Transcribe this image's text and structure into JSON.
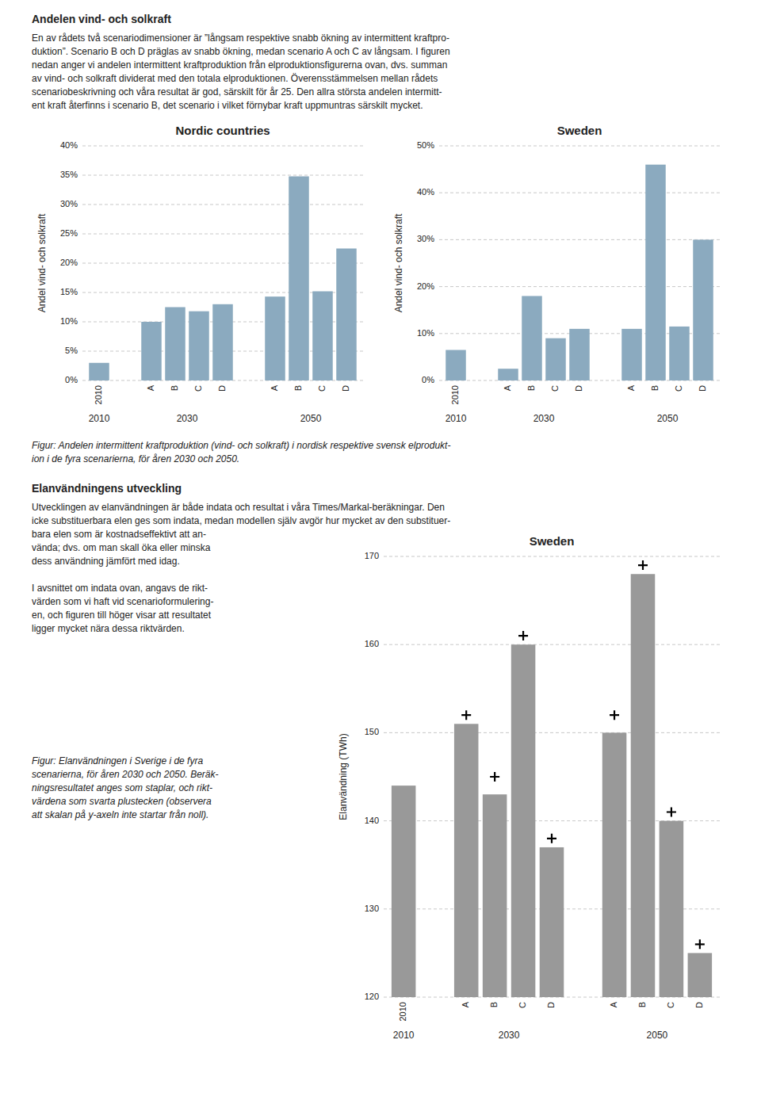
{
  "page_title": "Andelen vind- och solkraft",
  "page_text_lines": [
    "En av rådets två scenariodimensioner är ”långsam respektive snabb ökning av intermittent kraftpro-",
    "duktion”. Scenario B och D präglas av snabb ökning, medan scenario A och C av långsam. I figuren",
    "nedan anger vi andelen intermittent kraftproduktion från elproduktionsfigurerna ovan, dvs. summan",
    "av vind- och solkraft dividerat med den totala elproduktionen. Överensstämmelsen mellan rådets",
    "scenariobeskrivning och våra resultat är god, särskilt för år 25. Den allra största andelen intermitt-",
    "ent kraft återfinns i scenario B, det scenario i vilket förnybar kraft uppmuntras särskilt mycket."
  ],
  "figure1_caption_lines": [
    "Figur: Andelen intermittent kraftproduktion (vind- och solkraft) i nordisk respektive svensk elprodukt-",
    "ion i de fyra scenarierna, för åren 2030 och 2050."
  ],
  "section2_title": "Elanvändningens utveckling",
  "section2_paragraphs": [
    [
      "Utvecklingen av elanvändningen är både indata och resultat i våra Times/Markal-beräkningar. Den",
      "icke substituerbara elen ges som indata, medan modellen själv avgör hur mycket av den substituer-",
      "bara elen som är kostnadseffektivt att an-",
      "vända; dvs. om man skall öka eller minska",
      "dess användning jämfört med idag."
    ],
    [
      "I avsnittet om indata ovan, angavs de rikt-",
      "värden som vi haft vid scenarioformulering-",
      "en, och figuren till höger visar att resultatet",
      "ligger mycket nära dessa riktvärden."
    ]
  ],
  "figure2_caption_lines": [
    "Figur: Elanvändningen i Sverige i de fyra",
    "scenarierna, för åren 2030 och 2050. Beräk-",
    "ningsresultatet anges som staplar, och rikt-",
    "värdena som svarta plustecken (observera",
    "att skalan på y-axeln inte startar från noll)."
  ],
  "chart_data": [
    {
      "type": "bar",
      "title": "Nordic countries",
      "y_label": "Andel vind- och solkraft",
      "categories": [
        "2010",
        "A",
        "B",
        "C",
        "D",
        "A",
        "B",
        "C",
        "D"
      ],
      "values": [
        0.03,
        0.1,
        0.125,
        0.118,
        0.13,
        0.143,
        0.348,
        0.152,
        0.225
      ],
      "color": "#8baabf",
      "ylim": [
        0,
        0.4
      ],
      "yticks": [
        {
          "value": 0.0,
          "label": "0%"
        },
        {
          "value": 0.05,
          "label": "5%"
        },
        {
          "value": 0.1,
          "label": "10%"
        },
        {
          "value": 0.15,
          "label": "15%"
        },
        {
          "value": 0.2,
          "label": "20%"
        },
        {
          "value": 0.25,
          "label": "25%"
        },
        {
          "value": 0.3,
          "label": "30%"
        },
        {
          "value": 0.35,
          "label": "35%"
        },
        {
          "value": 0.4,
          "label": "40%"
        }
      ],
      "annotations": [
        "2010",
        "2030",
        "2050"
      ],
      "grid": true
    },
    {
      "type": "bar",
      "title": "Sweden",
      "y_label": "Andel vind- och solkraft",
      "categories": [
        "2010",
        "A",
        "B",
        "C",
        "D",
        "A",
        "B",
        "C",
        "D"
      ],
      "values": [
        0.065,
        0.025,
        0.18,
        0.09,
        0.11,
        0.11,
        0.46,
        0.115,
        0.3
      ],
      "color": "#8baabf",
      "ylim": [
        0,
        0.5
      ],
      "yticks": [
        {
          "value": 0.0,
          "label": "0%"
        },
        {
          "value": 0.1,
          "label": "10%"
        },
        {
          "value": 0.2,
          "label": "20%"
        },
        {
          "value": 0.3,
          "label": "30%"
        },
        {
          "value": 0.4,
          "label": "40%"
        },
        {
          "value": 0.5,
          "label": "50%"
        }
      ],
      "annotations": [
        "2010",
        "2030",
        "2050"
      ],
      "grid": true
    },
    {
      "type": "bar",
      "title": "Sweden",
      "y_label": "Elanvändning (TWh)",
      "categories": [
        "2010",
        "A",
        "B",
        "C",
        "D",
        "A",
        "B",
        "C",
        "D"
      ],
      "series": [
        {
          "type": "bar",
          "color": "#999999",
          "values": [
            144,
            151,
            143,
            160,
            137,
            150,
            168,
            140,
            125
          ]
        },
        {
          "type": "scatter",
          "marker": "plus",
          "color": "#000000",
          "values": [
            null,
            152,
            145,
            161,
            138,
            152,
            169,
            141,
            126
          ]
        }
      ],
      "ylim": [
        120,
        170
      ],
      "yticks": [
        120,
        130,
        140,
        150,
        160,
        170
      ],
      "annotations": [
        "2010",
        "2030",
        "2050"
      ],
      "grid": true
    }
  ]
}
